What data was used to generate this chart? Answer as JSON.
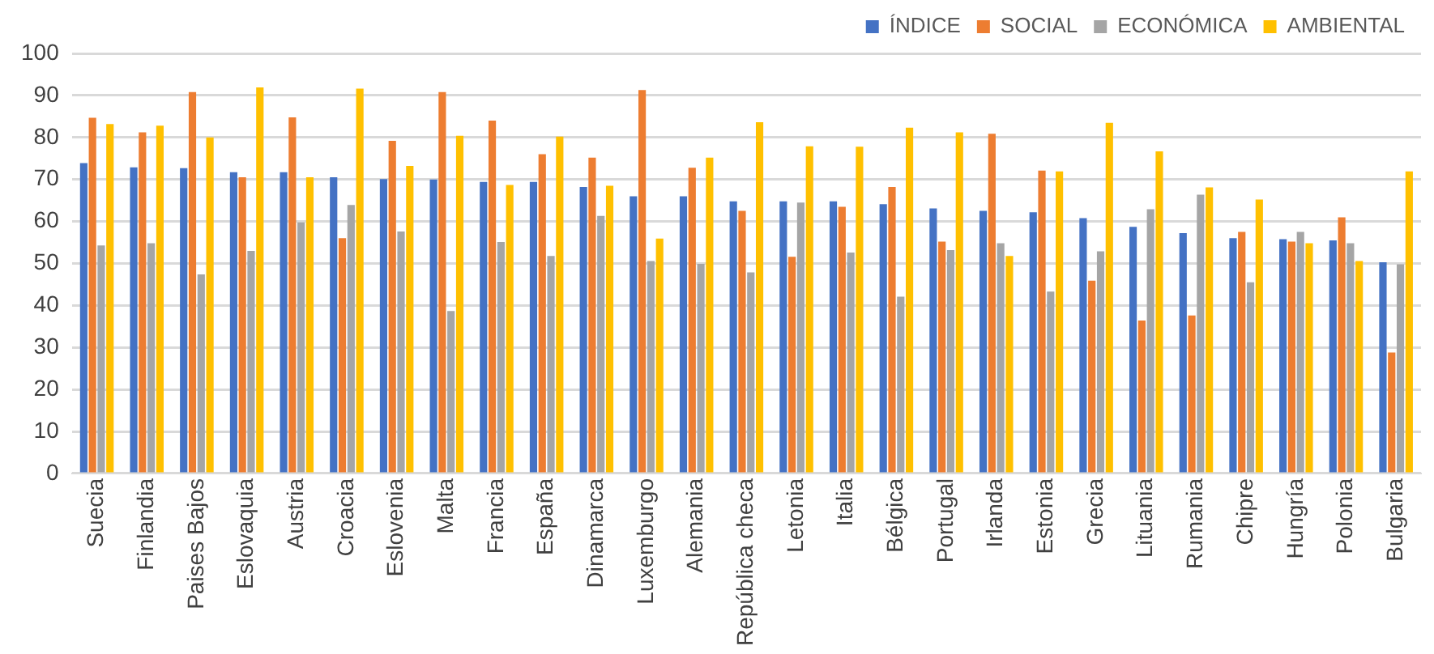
{
  "chart_data": {
    "type": "bar",
    "categories": [
      "Suecia",
      "Finlandia",
      "Paises Bajos",
      "Eslovaquia",
      "Austria",
      "Croacia",
      "Eslovenia",
      "Malta",
      "Francia",
      "España",
      "Dinamarca",
      "Luxemburgo",
      "Alemania",
      "República checa",
      "Letonia",
      "Italia",
      "Bélgica",
      "Portugal",
      "Irlanda",
      "Estonia",
      "Grecia",
      "Lituania",
      "Rumania",
      "Chipre",
      "Hungría",
      "Polonia",
      "Bulgaria"
    ],
    "series": [
      {
        "name": "ÍNDICE",
        "color": "#4472c4",
        "values": [
          73.9,
          72.9,
          72.7,
          71.7,
          71.7,
          70.5,
          70.1,
          70,
          69.4,
          69.4,
          68.2,
          66,
          66,
          64.8,
          64.8,
          64.8,
          64.1,
          63.1,
          62.5,
          62.2,
          60.8,
          58.7,
          57.2,
          56,
          55.8,
          55.5,
          50.3
        ]
      },
      {
        "name": "SOCIAL",
        "color": "#ed7d31",
        "values": [
          84.7,
          81.2,
          90.8,
          70.5,
          84.8,
          56,
          79.2,
          90.8,
          84,
          76,
          75.2,
          91.3,
          72.8,
          62.5,
          51.6,
          63.5,
          68.2,
          55.2,
          80.9,
          72.1,
          45.9,
          36.4,
          37.6,
          57.5,
          55.2,
          61,
          28.8
        ]
      },
      {
        "name": "ECONÓMICA",
        "color": "#a5a5a5",
        "values": [
          54.3,
          54.8,
          47.4,
          53,
          59.8,
          63.9,
          57.6,
          38.7,
          55.1,
          51.8,
          61.3,
          50.6,
          49.9,
          47.9,
          64.5,
          52.6,
          42.1,
          53.2,
          54.8,
          43.3,
          52.9,
          62.9,
          66.4,
          45.5,
          57.5,
          54.8,
          49.8
        ]
      },
      {
        "name": "AMBIENTAL",
        "color": "#ffc000",
        "values": [
          83.2,
          82.8,
          80,
          91.9,
          70.5,
          91.6,
          73.2,
          80.4,
          68.7,
          80.2,
          68.5,
          55.9,
          75.2,
          83.6,
          77.9,
          77.8,
          82.3,
          81.2,
          51.8,
          71.9,
          83.5,
          76.7,
          68.1,
          65.2,
          54.8,
          50.6,
          71.9
        ]
      }
    ],
    "ylim": [
      0,
      100
    ],
    "yticks": [
      0,
      10,
      20,
      30,
      40,
      50,
      60,
      70,
      80,
      90,
      100
    ],
    "grid": "y",
    "legend": "top right"
  }
}
